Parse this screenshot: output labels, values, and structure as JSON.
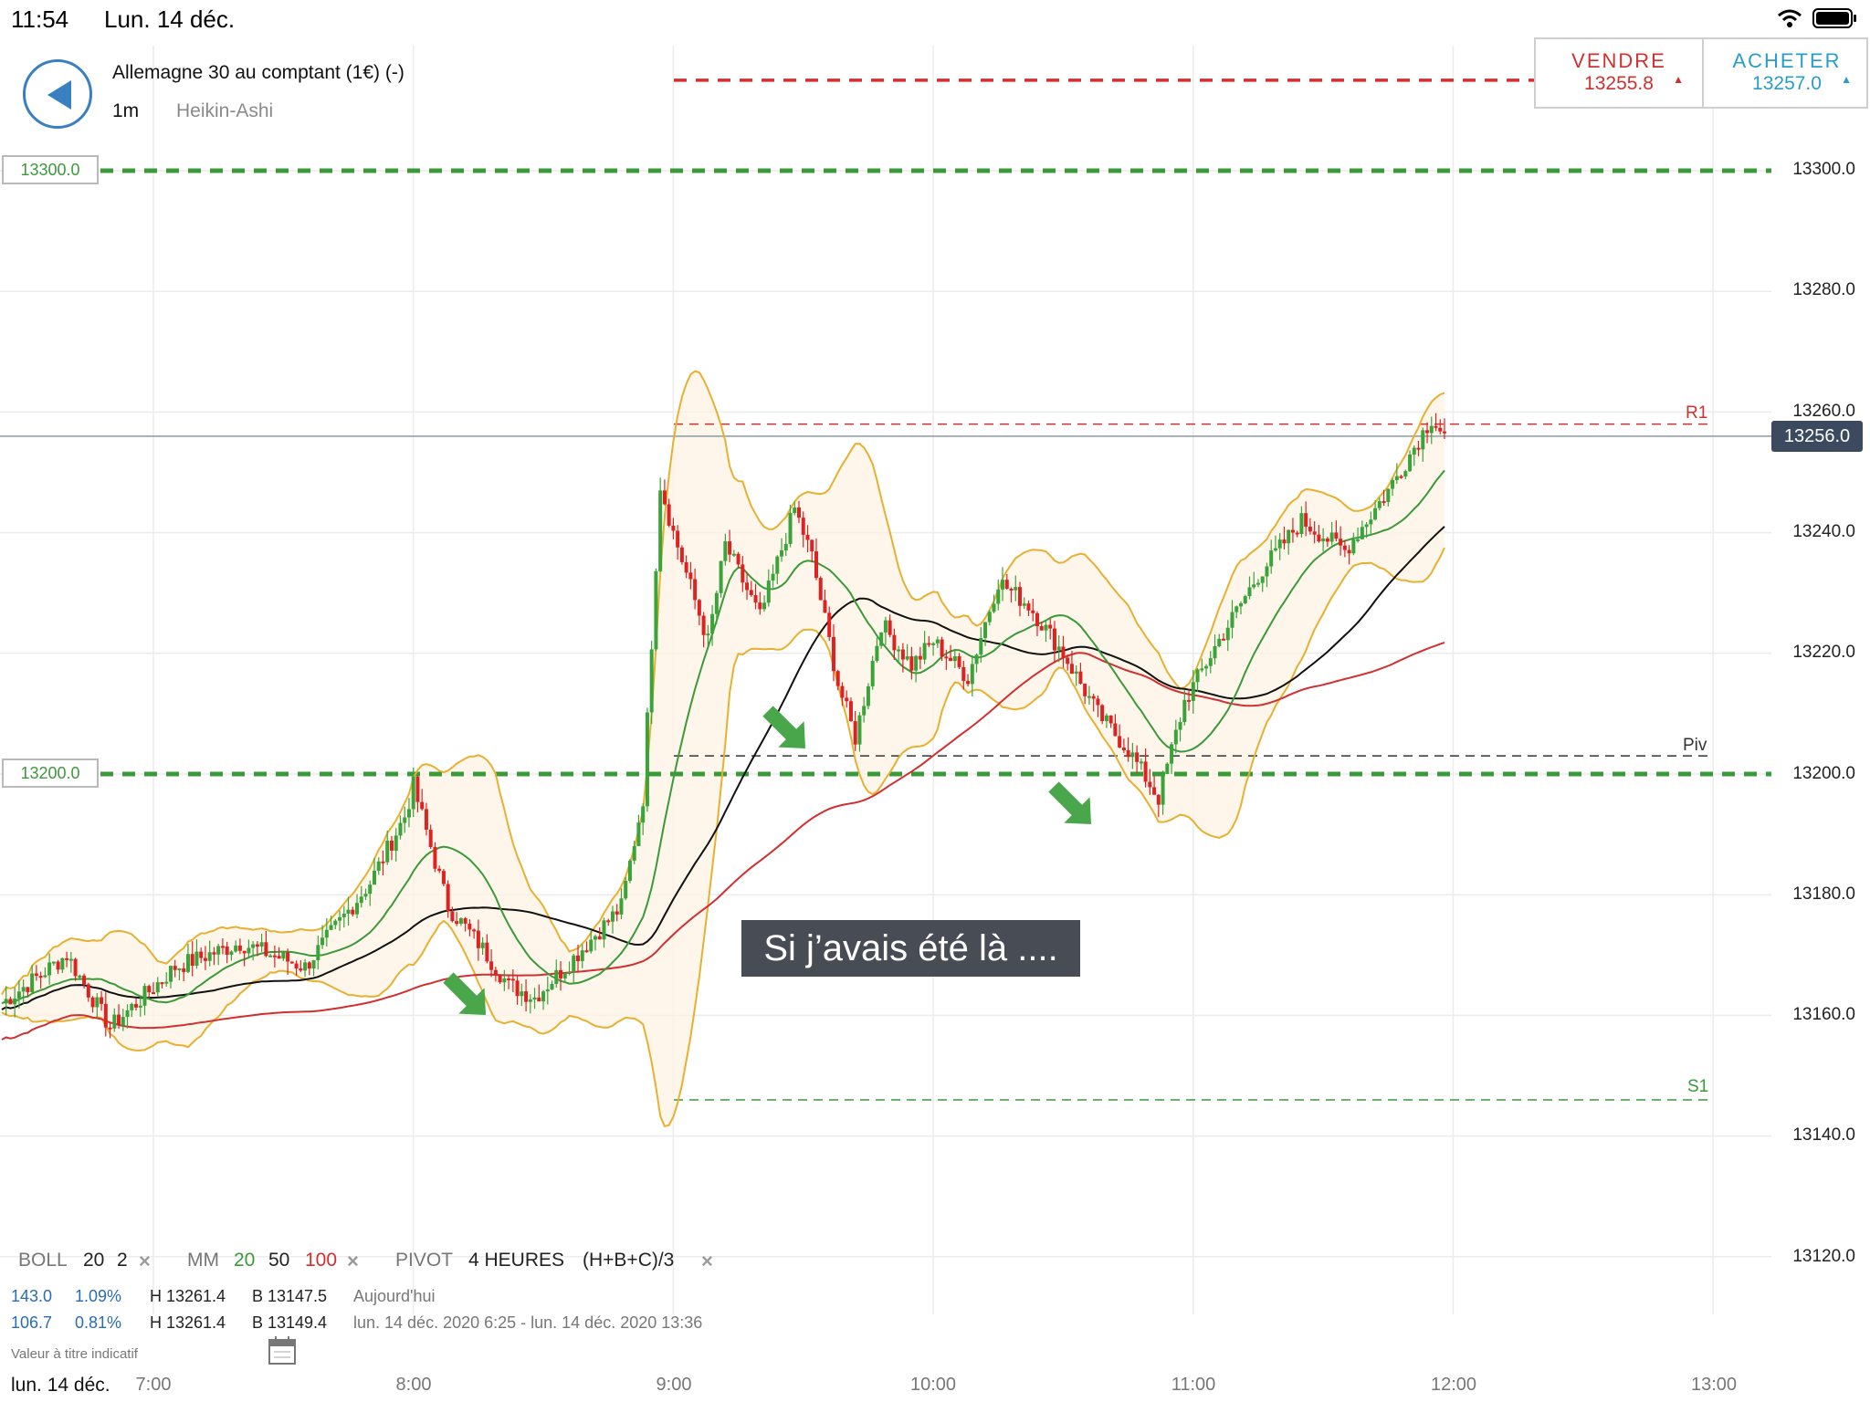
{
  "status_bar": {
    "time": "11:54",
    "date": "Lun. 14 déc."
  },
  "header": {
    "instrument": "Allemagne 30 au comptant (1€) (-)",
    "timeframe": "1m",
    "chart_type": "Heikin-Ashi"
  },
  "trade": {
    "sell_label": "VENDRE",
    "sell_price": "13255.8",
    "buy_label": "ACHETER",
    "buy_price": "13257.0"
  },
  "level_tags": [
    "13300.0",
    "13200.0"
  ],
  "current_price": "13256.0",
  "pivot_labels": {
    "r1": "R1",
    "piv": "Piv",
    "s1": "S1"
  },
  "annotation": "Si j’avais été là ....",
  "indicators": {
    "boll": {
      "name": "BOLL",
      "period": "20",
      "dev": "2"
    },
    "mm": {
      "name": "MM",
      "p1": "20",
      "p2": "50",
      "p3": "100"
    },
    "pivot": {
      "name": "PIVOT",
      "period": "4 HEURES",
      "formula": "(H+B+C)/3"
    },
    "remove_icon": "×"
  },
  "stats": [
    {
      "change": "143.0",
      "pct": "1.09%",
      "high": "H 13261.4",
      "low": "B 13147.5",
      "period": "Aujourd'hui"
    },
    {
      "change": "106.7",
      "pct": "0.81%",
      "high": "H 13261.4",
      "low": "B 13149.4",
      "period": "lun. 14 déc. 2020 6:25 - lun. 14 déc. 2020 13:36"
    }
  ],
  "disclaimer": "Valeur à titre indicatif",
  "footer_date": "lun. 14 déc.",
  "colors": {
    "up": "#3aa33a",
    "down": "#dd2222",
    "boll": "#e8b030",
    "ma20": "#3a9a3a",
    "ma50": "#111111",
    "ma100": "#d03030"
  },
  "chart_data": {
    "type": "candlestick",
    "chart_style": "Heikin-Ashi",
    "y_ticks": [
      "13300.0",
      "13280.0",
      "13260.0",
      "13240.0",
      "13220.0",
      "13200.0",
      "13180.0",
      "13160.0",
      "13140.0",
      "13120.0"
    ],
    "ylim": [
      13114,
      13320
    ],
    "x_ticks": [
      "7:00",
      "8:00",
      "9:00",
      "10:00",
      "11:00",
      "12:00",
      "13:00"
    ],
    "horizontal_levels": {
      "alert_high": 13300.0,
      "alert_low": 13200.0,
      "sell_price": 13315.0,
      "current": 13256.0,
      "R1": 13258.0,
      "Piv": 13203.0,
      "S1": 13146.0
    },
    "price_path": [
      [
        "6:25",
        13162
      ],
      [
        "6:40",
        13170
      ],
      [
        "6:50",
        13158
      ],
      [
        "7:05",
        13168
      ],
      [
        "7:20",
        13172
      ],
      [
        "7:35",
        13168
      ],
      [
        "7:50",
        13182
      ],
      [
        "7:58",
        13193
      ],
      [
        "8:00",
        13198
      ],
      [
        "8:08",
        13178
      ],
      [
        "8:15",
        13172
      ],
      [
        "8:22",
        13165
      ],
      [
        "8:28",
        13163
      ],
      [
        "8:35",
        13168
      ],
      [
        "8:48",
        13178
      ],
      [
        "8:53",
        13196
      ],
      [
        "8:57",
        13248
      ],
      [
        "9:00",
        13240
      ],
      [
        "9:08",
        13222
      ],
      [
        "9:12",
        13238
      ],
      [
        "9:20",
        13226
      ],
      [
        "9:28",
        13244
      ],
      [
        "9:32",
        13236
      ],
      [
        "9:38",
        13215
      ],
      [
        "9:42",
        13206
      ],
      [
        "9:48",
        13225
      ],
      [
        "9:55",
        13218
      ],
      [
        "10:00",
        13222
      ],
      [
        "10:08",
        13216
      ],
      [
        "10:15",
        13232
      ],
      [
        "10:22",
        13228
      ],
      [
        "10:30",
        13220
      ],
      [
        "10:38",
        13210
      ],
      [
        "10:45",
        13204
      ],
      [
        "10:52",
        13196
      ],
      [
        "10:58",
        13212
      ],
      [
        "11:05",
        13221
      ],
      [
        "11:15",
        13233
      ],
      [
        "11:25",
        13242
      ],
      [
        "11:35",
        13237
      ],
      [
        "11:45",
        13247
      ],
      [
        "11:55",
        13259
      ],
      [
        "11:58",
        13256
      ]
    ]
  }
}
